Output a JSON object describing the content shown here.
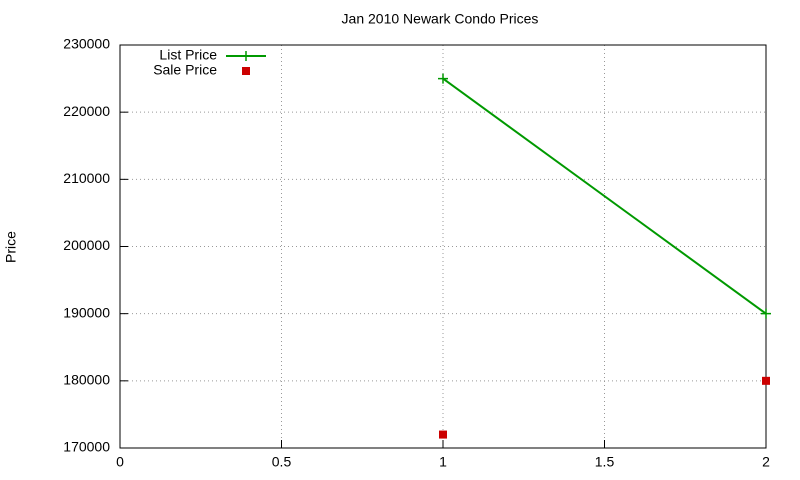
{
  "chart_data": {
    "type": "line",
    "title": "Jan 2010 Newark Condo Prices",
    "y_label": "Price",
    "xlim": [
      0,
      2
    ],
    "xticks": [
      0,
      0.5,
      1,
      1.5,
      2
    ],
    "ylim": [
      170000,
      230000
    ],
    "yticks": [
      170000,
      180000,
      190000,
      200000,
      210000,
      220000,
      230000
    ],
    "grid": true,
    "legend": "top-left",
    "series": [
      {
        "name": "List Price",
        "color": "#009900",
        "mode": "linespoints",
        "x": [
          1,
          2
        ],
        "values": [
          225000,
          190000
        ]
      },
      {
        "name": "Sale Price",
        "color": "#cc0000",
        "mode": "points",
        "x": [
          1,
          2
        ],
        "values": [
          172000,
          180000
        ]
      }
    ]
  }
}
